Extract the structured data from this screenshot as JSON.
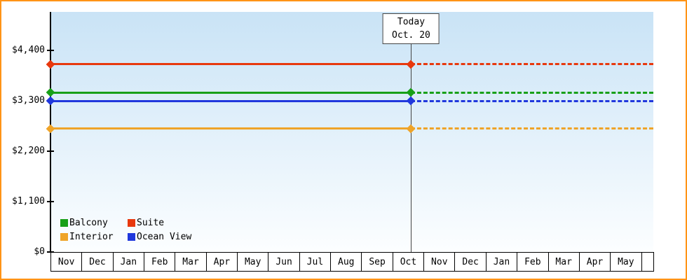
{
  "chart_data": {
    "type": "line",
    "title": "",
    "grid": false,
    "legend_position": "bottom-left",
    "colors": {
      "frame_border": "#ff9416",
      "plot_gradient_top": "#c9e3f6",
      "plot_gradient_bottom": "#fcfeff",
      "axis": "#000000",
      "today_line": "#444444"
    },
    "y_axis": {
      "ylim": [
        0,
        5240
      ],
      "ticks": [
        {
          "label": "$4,400",
          "value": 4400
        },
        {
          "label": "$3,300",
          "value": 3300
        },
        {
          "label": "$2,200",
          "value": 2200
        },
        {
          "label": "$1,100",
          "value": 1100
        },
        {
          "label": "$0",
          "value": 0
        }
      ]
    },
    "x_axis": {
      "months": [
        "Nov",
        "Dec",
        "Jan",
        "Feb",
        "Mar",
        "Apr",
        "May",
        "Jun",
        "Jul",
        "Aug",
        "Sep",
        "Oct",
        "Nov",
        "Dec",
        "Jan",
        "Feb",
        "Mar",
        "Apr",
        "May"
      ]
    },
    "today": {
      "line1": "Today",
      "line2": "Oct. 20",
      "month_index": 11,
      "month_fraction": 0.6
    },
    "series": [
      {
        "name": "Balcony",
        "color": "#18a018",
        "value": 3480
      },
      {
        "name": "Suite",
        "color": "#e8380d",
        "value": 4100
      },
      {
        "name": "Interior",
        "color": "#efa428",
        "value": 2690
      },
      {
        "name": "Ocean View",
        "color": "#2038dd",
        "value": 3300
      }
    ]
  }
}
